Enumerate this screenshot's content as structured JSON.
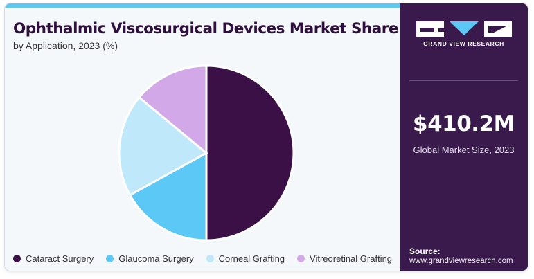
{
  "title": "Ophthalmic Viscosurgical Devices Market Share",
  "subtitle": "by Application, 2023 (%)",
  "chart_data": {
    "type": "pie",
    "categories": [
      "Cataract Surgery",
      "Glaucoma Surgery",
      "Corneal Grafting",
      "Vitreoretinal Grafting"
    ],
    "values": [
      50,
      17,
      19,
      14
    ],
    "colors": [
      "#3a1047",
      "#5bc8f5",
      "#bfe9fb",
      "#d2a8e8"
    ],
    "legend_position": "bottom"
  },
  "brand": {
    "name": "GRAND VIEW RESEARCH",
    "market_size": "$410.2M",
    "market_size_label": "Global Market Size, 2023",
    "source_label": "Source:",
    "source_url": "www.grandviewresearch.com",
    "panel_color": "#3a1a4c",
    "accent_color": "#5bc8f5"
  }
}
